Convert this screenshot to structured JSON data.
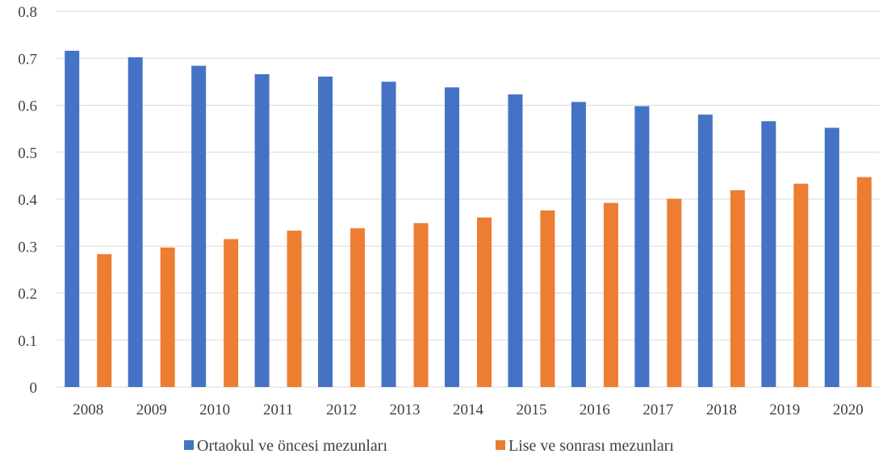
{
  "chart_data": {
    "type": "bar",
    "categories": [
      "2008",
      "2009",
      "2010",
      "2011",
      "2012",
      "2013",
      "2014",
      "2015",
      "2016",
      "2017",
      "2018",
      "2019",
      "2020"
    ],
    "series": [
      {
        "name": "Ortaokul ve öncesi mezunları",
        "color": "#4472C4",
        "values": [
          0.716,
          0.702,
          0.684,
          0.666,
          0.661,
          0.65,
          0.638,
          0.623,
          0.607,
          0.598,
          0.58,
          0.566,
          0.552
        ]
      },
      {
        "name": "Lise ve sonrası mezunları",
        "color": "#ED7D31",
        "values": [
          0.283,
          0.297,
          0.315,
          0.333,
          0.338,
          0.349,
          0.361,
          0.376,
          0.392,
          0.401,
          0.419,
          0.433,
          0.447
        ]
      }
    ],
    "y_ticks": [
      "0",
      "0.1",
      "0.2",
      "0.3",
      "0.4",
      "0.5",
      "0.6",
      "0.7",
      "0.8"
    ],
    "ylim": [
      0,
      0.8
    ],
    "grid": true,
    "gridline_color": "#D9D9D9",
    "legend_position": "bottom"
  }
}
